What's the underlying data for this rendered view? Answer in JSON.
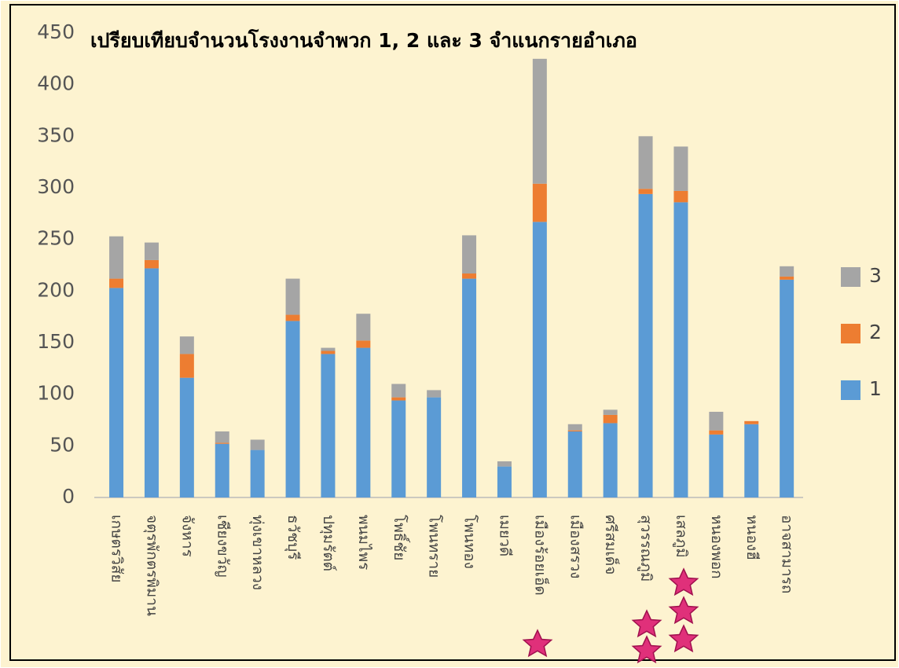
{
  "chart_data": {
    "type": "stacked_bar",
    "title": "เปรียบเทียบจำนวนโรงงานจำพวก 1, 2 และ 3 จำแนกรายอำเภอ",
    "categories": [
      "เกษตรวิสัย",
      "จตุรพักตรพิมาน",
      "จังหาร",
      "เชียงขวัญ",
      "ทุ่งเขาหลวง",
      "ธวัชบุรี",
      "ปทุมรัตต์",
      "พนมไพร",
      "โพธิ์ชัย",
      "โพนทราย",
      "โพนทอง",
      "เมยวดี",
      "เมืองร้อยเอ็ด",
      "เมืองสรวง",
      "ศรีสมเด็จ",
      "สุวรรณภูมิ",
      "เสลภูมิ",
      "หนองพอก",
      "หนองฮี",
      "อาจสามารถ"
    ],
    "series": [
      {
        "name": "1",
        "color": "#5b9bd5",
        "values": [
          203,
          222,
          116,
          52,
          46,
          171,
          139,
          145,
          94,
          97,
          212,
          30,
          267,
          64,
          72,
          294,
          286,
          61,
          71,
          211
        ]
      },
      {
        "name": "2",
        "color": "#ed7d31",
        "values": [
          9,
          8,
          23,
          1,
          0,
          6,
          3,
          7,
          3,
          0,
          5,
          0,
          37,
          1,
          8,
          5,
          11,
          4,
          3,
          3
        ]
      },
      {
        "name": "3",
        "color": "#a5a5a5",
        "values": [
          41,
          17,
          17,
          11,
          10,
          35,
          3,
          26,
          13,
          7,
          37,
          5,
          121,
          6,
          5,
          51,
          43,
          18,
          0,
          10
        ]
      }
    ],
    "ylim": [
      0,
      450
    ],
    "yticks": [
      0,
      50,
      100,
      150,
      200,
      250,
      300,
      350,
      400,
      450
    ],
    "legend": "right"
  }
}
